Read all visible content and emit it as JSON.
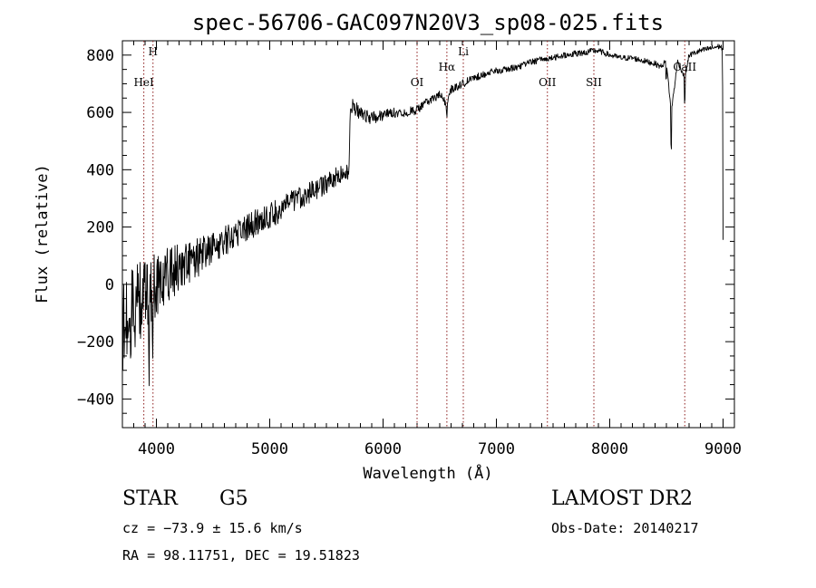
{
  "chart_data": {
    "type": "line",
    "title": "spec-56706-GAC097N20V3_sp08-025.fits",
    "xlabel": "Wavelength (Å)",
    "ylabel": "Flux (relative)",
    "xlim": [
      3700,
      9100
    ],
    "ylim": [
      -500,
      850
    ],
    "xticks": [
      4000,
      5000,
      6000,
      7000,
      8000,
      9000
    ],
    "xtick_labels": [
      "4000",
      "5000",
      "6000",
      "7000",
      "8000",
      "9000"
    ],
    "yticks": [
      -400,
      -200,
      0,
      200,
      400,
      600,
      800
    ],
    "ytick_labels": [
      "−400",
      "−200",
      "0",
      "200",
      "400",
      "600",
      "800"
    ],
    "series": [
      {
        "name": "flux",
        "anchors_x": [
          3700,
          3760,
          3800,
          3850,
          3900,
          3950,
          4000,
          4100,
          4200,
          4300,
          4400,
          4500,
          4600,
          4700,
          4800,
          4900,
          5000,
          5100,
          5200,
          5300,
          5400,
          5500,
          5600,
          5700,
          5710,
          5720,
          5730,
          5800,
          5900,
          6000,
          6100,
          6200,
          6300,
          6400,
          6500,
          6562,
          6600,
          6700,
          6800,
          6900,
          7000,
          7100,
          7200,
          7300,
          7400,
          7500,
          7600,
          7700,
          7800,
          7850,
          7900,
          8000,
          8100,
          8200,
          8300,
          8400,
          8450,
          8500,
          8542,
          8600,
          8662,
          8700,
          8800,
          8900,
          8960,
          8980,
          8995,
          9000
        ],
        "anchors_y": [
          -150,
          -120,
          -80,
          -60,
          -40,
          -20,
          0,
          40,
          60,
          80,
          100,
          130,
          150,
          180,
          200,
          220,
          240,
          260,
          290,
          310,
          330,
          350,
          380,
          390,
          620,
          630,
          620,
          600,
          580,
          590,
          600,
          600,
          610,
          640,
          660,
          630,
          680,
          700,
          720,
          735,
          745,
          750,
          760,
          775,
          785,
          790,
          800,
          805,
          810,
          815,
          815,
          800,
          790,
          790,
          780,
          770,
          760,
          780,
          600,
          780,
          720,
          800,
          815,
          825,
          830,
          830,
          820,
          150
        ],
        "noise_envelope": [
          [
            3700,
            180
          ],
          [
            4000,
            110
          ],
          [
            4500,
            55
          ],
          [
            5000,
            45
          ],
          [
            5700,
            30
          ],
          [
            6000,
            18
          ],
          [
            7000,
            12
          ],
          [
            8000,
            10
          ],
          [
            9000,
            10
          ]
        ],
        "dips": [
          [
            3934,
            -330
          ],
          [
            3968,
            -250
          ],
          [
            4102,
            -120
          ],
          [
            4340,
            -90
          ],
          [
            4861,
            -50
          ],
          [
            6563,
            -70
          ],
          [
            8498,
            -100
          ],
          [
            8542,
            -190
          ],
          [
            8662,
            -130
          ]
        ]
      }
    ],
    "line_markers": [
      {
        "label": "HeI",
        "wavelength": 3889,
        "label_row": "lower"
      },
      {
        "label": "H",
        "wavelength": 3970,
        "label_row": "upper"
      },
      {
        "label": "OI",
        "wavelength": 6300,
        "label_row": "lower"
      },
      {
        "label": "Hα",
        "wavelength": 6563,
        "label_row": "middle"
      },
      {
        "label": "Li",
        "wavelength": 6708,
        "label_row": "upper"
      },
      {
        "label": "OII",
        "wavelength": 7450,
        "label_row": "lower"
      },
      {
        "label": "SII",
        "wavelength": 7860,
        "label_row": "lower"
      },
      {
        "label": "CaII",
        "wavelength": 8662,
        "label_row": "middle"
      }
    ]
  },
  "info": {
    "class_label": "STAR",
    "subclass": "G5",
    "survey": "LAMOST DR2",
    "velocity": "cz = −73.9 ± 15.6 km/s",
    "obs_date": "Obs-Date: 20140217",
    "coords": "RA =  98.11751, DEC =  19.51823"
  }
}
